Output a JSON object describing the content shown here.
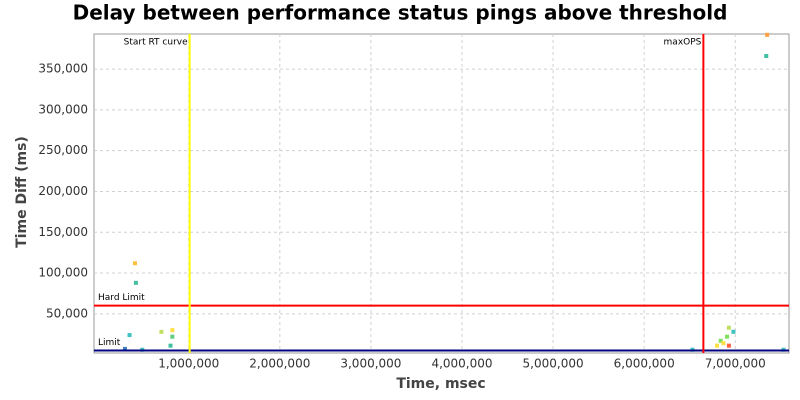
{
  "chart_data": {
    "type": "scatter",
    "title": "Delay between performance status pings above threshold",
    "x_label": "Time, msec",
    "y_label": "Time Diff (ms)",
    "xlim": [
      -40000,
      7590000
    ],
    "ylim": [
      2000,
      393000
    ],
    "xticks": [
      {
        "value": 1000000,
        "label": "1,000,000"
      },
      {
        "value": 2000000,
        "label": "2,000,000"
      },
      {
        "value": 3000000,
        "label": "3,000,000"
      },
      {
        "value": 4000000,
        "label": "4,000,000"
      },
      {
        "value": 5000000,
        "label": "5,000,000"
      },
      {
        "value": 6000000,
        "label": "6,000,000"
      },
      {
        "value": 7000000,
        "label": "7,000,000"
      }
    ],
    "yticks": [
      {
        "value": 50000,
        "label": "50,000"
      },
      {
        "value": 100000,
        "label": "100,000"
      },
      {
        "value": 150000,
        "label": "150,000"
      },
      {
        "value": 200000,
        "label": "200,000"
      },
      {
        "value": 250000,
        "label": "250,000"
      },
      {
        "value": 300000,
        "label": "300,000"
      },
      {
        "value": 350000,
        "label": "350,000"
      }
    ],
    "grid": true,
    "vlines": [
      {
        "label": "Start RT curve",
        "x": 1010000,
        "color": "#ffff00"
      },
      {
        "label": "maxOPS",
        "x": 6650000,
        "color": "#ff0000"
      }
    ],
    "hlines": [
      {
        "label": "Hard Limit",
        "y": 60000,
        "color": "#ff0000"
      },
      {
        "label": "Limit",
        "y": 5000,
        "color": "#000080"
      }
    ],
    "series": [
      {
        "x": [
          410000,
          420000,
          350000,
          700000,
          820000,
          820000,
          800000,
          300000,
          490000,
          7350000,
          7340000,
          6930000,
          6980000,
          6910000,
          6840000,
          6870000,
          6800000,
          6930000,
          6530000,
          7530000
        ],
        "values": [
          112000,
          88000,
          24000,
          28000,
          30000,
          22000,
          11000,
          7000,
          6000,
          392000,
          366000,
          33000,
          28000,
          22000,
          17000,
          14000,
          11000,
          11000,
          6000,
          6000
        ],
        "colors": [
          "#ffc040",
          "#40c0a0",
          "#40c0c0",
          "#c0e060",
          "#ffe040",
          "#60d080",
          "#40c0a0",
          "#4080c0",
          "#40c0c0",
          "#ffa040",
          "#40c0a0",
          "#c0e060",
          "#40c0c0",
          "#80e060",
          "#80e060",
          "#ffe040",
          "#ffe040",
          "#ff6040",
          "#40c0c0",
          "#40c0c0"
        ]
      }
    ]
  }
}
